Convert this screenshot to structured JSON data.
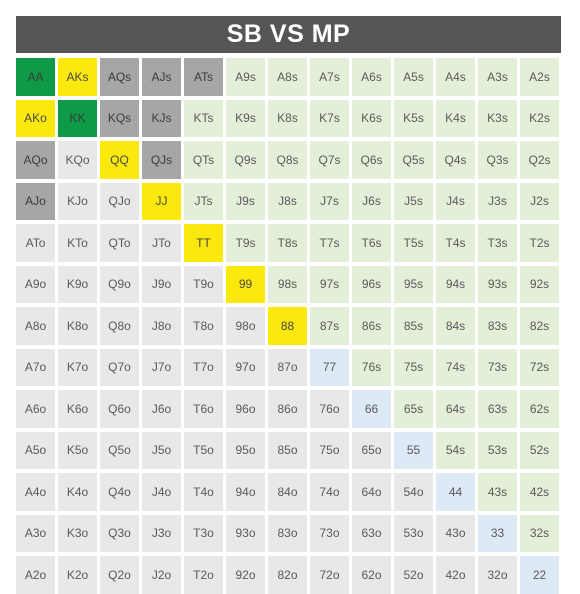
{
  "title": "SB VS MP",
  "legend_colors": {
    "raise": "#0f9a48",
    "call": "#fbe80c",
    "mixed": "#a6a6a6",
    "fold_suited": "#e3efd9",
    "fold_pair": "#dde9f5",
    "fold_offsuit": "#e8e8e8"
  },
  "rows": [
    [
      {
        "t": "AA",
        "c": "raise"
      },
      {
        "t": "AKs",
        "c": "call"
      },
      {
        "t": "AQs",
        "c": "mix"
      },
      {
        "t": "AJs",
        "c": "mix"
      },
      {
        "t": "ATs",
        "c": "mix"
      },
      {
        "t": "A9s",
        "c": "suited"
      },
      {
        "t": "A8s",
        "c": "suited"
      },
      {
        "t": "A7s",
        "c": "suited"
      },
      {
        "t": "A6s",
        "c": "suited"
      },
      {
        "t": "A5s",
        "c": "suited"
      },
      {
        "t": "A4s",
        "c": "suited"
      },
      {
        "t": "A3s",
        "c": "suited"
      },
      {
        "t": "A2s",
        "c": "suited"
      }
    ],
    [
      {
        "t": "AKo",
        "c": "call"
      },
      {
        "t": "KK",
        "c": "raise"
      },
      {
        "t": "KQs",
        "c": "mix"
      },
      {
        "t": "KJs",
        "c": "mix"
      },
      {
        "t": "KTs",
        "c": "suited"
      },
      {
        "t": "K9s",
        "c": "suited"
      },
      {
        "t": "K8s",
        "c": "suited"
      },
      {
        "t": "K7s",
        "c": "suited"
      },
      {
        "t": "K6s",
        "c": "suited"
      },
      {
        "t": "K5s",
        "c": "suited"
      },
      {
        "t": "K4s",
        "c": "suited"
      },
      {
        "t": "K3s",
        "c": "suited"
      },
      {
        "t": "K2s",
        "c": "suited"
      }
    ],
    [
      {
        "t": "AQo",
        "c": "mix"
      },
      {
        "t": "KQo",
        "c": "offsuit"
      },
      {
        "t": "QQ",
        "c": "call"
      },
      {
        "t": "QJs",
        "c": "mix"
      },
      {
        "t": "QTs",
        "c": "suited"
      },
      {
        "t": "Q9s",
        "c": "suited"
      },
      {
        "t": "Q8s",
        "c": "suited"
      },
      {
        "t": "Q7s",
        "c": "suited"
      },
      {
        "t": "Q6s",
        "c": "suited"
      },
      {
        "t": "Q5s",
        "c": "suited"
      },
      {
        "t": "Q4s",
        "c": "suited"
      },
      {
        "t": "Q3s",
        "c": "suited"
      },
      {
        "t": "Q2s",
        "c": "suited"
      }
    ],
    [
      {
        "t": "AJo",
        "c": "mix"
      },
      {
        "t": "KJo",
        "c": "offsuit"
      },
      {
        "t": "QJo",
        "c": "offsuit"
      },
      {
        "t": "JJ",
        "c": "call"
      },
      {
        "t": "JTs",
        "c": "suited"
      },
      {
        "t": "J9s",
        "c": "suited"
      },
      {
        "t": "J8s",
        "c": "suited"
      },
      {
        "t": "J7s",
        "c": "suited"
      },
      {
        "t": "J6s",
        "c": "suited"
      },
      {
        "t": "J5s",
        "c": "suited"
      },
      {
        "t": "J4s",
        "c": "suited"
      },
      {
        "t": "J3s",
        "c": "suited"
      },
      {
        "t": "J2s",
        "c": "suited"
      }
    ],
    [
      {
        "t": "ATo",
        "c": "offsuit"
      },
      {
        "t": "KTo",
        "c": "offsuit"
      },
      {
        "t": "QTo",
        "c": "offsuit"
      },
      {
        "t": "JTo",
        "c": "offsuit"
      },
      {
        "t": "TT",
        "c": "call"
      },
      {
        "t": "T9s",
        "c": "suited"
      },
      {
        "t": "T8s",
        "c": "suited"
      },
      {
        "t": "T7s",
        "c": "suited"
      },
      {
        "t": "T6s",
        "c": "suited"
      },
      {
        "t": "T5s",
        "c": "suited"
      },
      {
        "t": "T4s",
        "c": "suited"
      },
      {
        "t": "T3s",
        "c": "suited"
      },
      {
        "t": "T2s",
        "c": "suited"
      }
    ],
    [
      {
        "t": "A9o",
        "c": "offsuit"
      },
      {
        "t": "K9o",
        "c": "offsuit"
      },
      {
        "t": "Q9o",
        "c": "offsuit"
      },
      {
        "t": "J9o",
        "c": "offsuit"
      },
      {
        "t": "T9o",
        "c": "offsuit"
      },
      {
        "t": "99",
        "c": "call"
      },
      {
        "t": "98s",
        "c": "suited"
      },
      {
        "t": "97s",
        "c": "suited"
      },
      {
        "t": "96s",
        "c": "suited"
      },
      {
        "t": "95s",
        "c": "suited"
      },
      {
        "t": "94s",
        "c": "suited"
      },
      {
        "t": "93s",
        "c": "suited"
      },
      {
        "t": "92s",
        "c": "suited"
      }
    ],
    [
      {
        "t": "A8o",
        "c": "offsuit"
      },
      {
        "t": "K8o",
        "c": "offsuit"
      },
      {
        "t": "Q8o",
        "c": "offsuit"
      },
      {
        "t": "J8o",
        "c": "offsuit"
      },
      {
        "t": "T8o",
        "c": "offsuit"
      },
      {
        "t": "98o",
        "c": "offsuit"
      },
      {
        "t": "88",
        "c": "call"
      },
      {
        "t": "87s",
        "c": "suited"
      },
      {
        "t": "86s",
        "c": "suited"
      },
      {
        "t": "85s",
        "c": "suited"
      },
      {
        "t": "84s",
        "c": "suited"
      },
      {
        "t": "83s",
        "c": "suited"
      },
      {
        "t": "82s",
        "c": "suited"
      }
    ],
    [
      {
        "t": "A7o",
        "c": "offsuit"
      },
      {
        "t": "K7o",
        "c": "offsuit"
      },
      {
        "t": "Q7o",
        "c": "offsuit"
      },
      {
        "t": "J7o",
        "c": "offsuit"
      },
      {
        "t": "T7o",
        "c": "offsuit"
      },
      {
        "t": "97o",
        "c": "offsuit"
      },
      {
        "t": "87o",
        "c": "offsuit"
      },
      {
        "t": "77",
        "c": "pair"
      },
      {
        "t": "76s",
        "c": "suited"
      },
      {
        "t": "75s",
        "c": "suited"
      },
      {
        "t": "74s",
        "c": "suited"
      },
      {
        "t": "73s",
        "c": "suited"
      },
      {
        "t": "72s",
        "c": "suited"
      }
    ],
    [
      {
        "t": "A6o",
        "c": "offsuit"
      },
      {
        "t": "K6o",
        "c": "offsuit"
      },
      {
        "t": "Q6o",
        "c": "offsuit"
      },
      {
        "t": "J6o",
        "c": "offsuit"
      },
      {
        "t": "T6o",
        "c": "offsuit"
      },
      {
        "t": "96o",
        "c": "offsuit"
      },
      {
        "t": "86o",
        "c": "offsuit"
      },
      {
        "t": "76o",
        "c": "offsuit"
      },
      {
        "t": "66",
        "c": "pair"
      },
      {
        "t": "65s",
        "c": "suited"
      },
      {
        "t": "64s",
        "c": "suited"
      },
      {
        "t": "63s",
        "c": "suited"
      },
      {
        "t": "62s",
        "c": "suited"
      }
    ],
    [
      {
        "t": "A5o",
        "c": "offsuit"
      },
      {
        "t": "K5o",
        "c": "offsuit"
      },
      {
        "t": "Q5o",
        "c": "offsuit"
      },
      {
        "t": "J5o",
        "c": "offsuit"
      },
      {
        "t": "T5o",
        "c": "offsuit"
      },
      {
        "t": "95o",
        "c": "offsuit"
      },
      {
        "t": "85o",
        "c": "offsuit"
      },
      {
        "t": "75o",
        "c": "offsuit"
      },
      {
        "t": "65o",
        "c": "offsuit"
      },
      {
        "t": "55",
        "c": "pair"
      },
      {
        "t": "54s",
        "c": "suited"
      },
      {
        "t": "53s",
        "c": "suited"
      },
      {
        "t": "52s",
        "c": "suited"
      }
    ],
    [
      {
        "t": "A4o",
        "c": "offsuit"
      },
      {
        "t": "K4o",
        "c": "offsuit"
      },
      {
        "t": "Q4o",
        "c": "offsuit"
      },
      {
        "t": "J4o",
        "c": "offsuit"
      },
      {
        "t": "T4o",
        "c": "offsuit"
      },
      {
        "t": "94o",
        "c": "offsuit"
      },
      {
        "t": "84o",
        "c": "offsuit"
      },
      {
        "t": "74o",
        "c": "offsuit"
      },
      {
        "t": "64o",
        "c": "offsuit"
      },
      {
        "t": "54o",
        "c": "offsuit"
      },
      {
        "t": "44",
        "c": "pair"
      },
      {
        "t": "43s",
        "c": "suited"
      },
      {
        "t": "42s",
        "c": "suited"
      }
    ],
    [
      {
        "t": "A3o",
        "c": "offsuit"
      },
      {
        "t": "K3o",
        "c": "offsuit"
      },
      {
        "t": "Q3o",
        "c": "offsuit"
      },
      {
        "t": "J3o",
        "c": "offsuit"
      },
      {
        "t": "T3o",
        "c": "offsuit"
      },
      {
        "t": "93o",
        "c": "offsuit"
      },
      {
        "t": "83o",
        "c": "offsuit"
      },
      {
        "t": "73o",
        "c": "offsuit"
      },
      {
        "t": "63o",
        "c": "offsuit"
      },
      {
        "t": "53o",
        "c": "offsuit"
      },
      {
        "t": "43o",
        "c": "offsuit"
      },
      {
        "t": "33",
        "c": "pair"
      },
      {
        "t": "32s",
        "c": "suited"
      }
    ],
    [
      {
        "t": "A2o",
        "c": "offsuit"
      },
      {
        "t": "K2o",
        "c": "offsuit"
      },
      {
        "t": "Q2o",
        "c": "offsuit"
      },
      {
        "t": "J2o",
        "c": "offsuit"
      },
      {
        "t": "T2o",
        "c": "offsuit"
      },
      {
        "t": "92o",
        "c": "offsuit"
      },
      {
        "t": "82o",
        "c": "offsuit"
      },
      {
        "t": "72o",
        "c": "offsuit"
      },
      {
        "t": "62o",
        "c": "offsuit"
      },
      {
        "t": "52o",
        "c": "offsuit"
      },
      {
        "t": "42o",
        "c": "offsuit"
      },
      {
        "t": "32o",
        "c": "offsuit"
      },
      {
        "t": "22",
        "c": "pair"
      }
    ]
  ]
}
